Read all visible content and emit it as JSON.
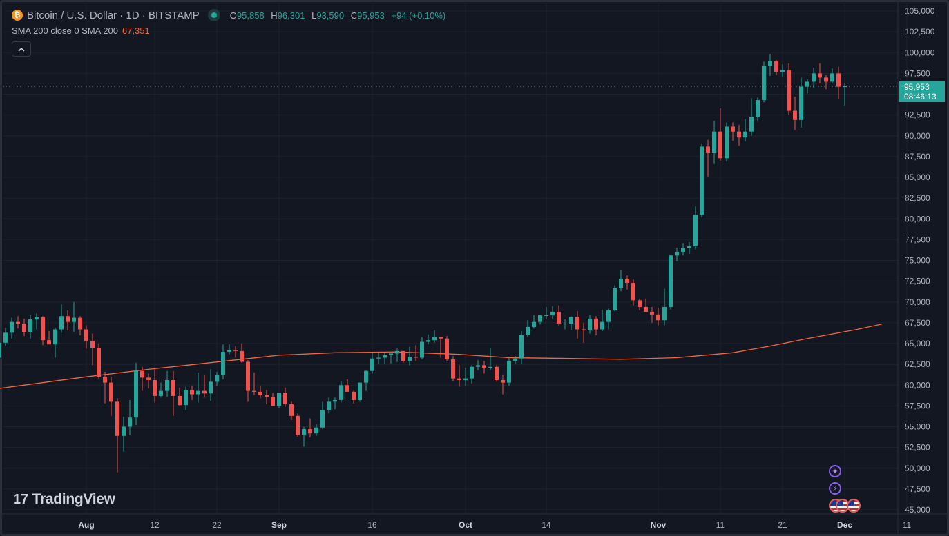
{
  "legend": {
    "logo_glyph": "₿",
    "symbol": "Bitcoin / U.S. Dollar · 1D · BITSTAMP",
    "o_label": "O",
    "o_value": "95,858",
    "h_label": "H",
    "h_value": "96,301",
    "l_label": "L",
    "l_value": "93,590",
    "c_label": "C",
    "c_value": "95,953",
    "change": "+94 (+0.10%)",
    "indicator": "SMA 200 close 0 SMA 200",
    "indicator_value": "67,351",
    "collapse_icon": "chevron-up-icon"
  },
  "price_tag": {
    "price": "95,953",
    "countdown": "08:46:13"
  },
  "branding": {
    "logo_mark": "17",
    "name": "TradingView"
  },
  "events": {
    "icon1": "✦",
    "icon2": "⚡",
    "flags": "us-flag-icon"
  },
  "colors": {
    "up": "#26a69a",
    "down": "#ef5350",
    "sma": "#f7673b",
    "background": "#131722",
    "grid": "#1e222d",
    "text": "#b2b5be"
  },
  "chart_data": {
    "type": "candlestick",
    "title": "Bitcoin / U.S. Dollar · 1D · BITSTAMP",
    "xlabel": "",
    "ylabel": "",
    "ylim": [
      45000,
      105000
    ],
    "y_ticks": [
      "45,000",
      "47,500",
      "50,000",
      "52,500",
      "55,000",
      "57,500",
      "60,000",
      "62,500",
      "65,000",
      "67,500",
      "70,000",
      "72,500",
      "75,000",
      "77,500",
      "80,000",
      "82,500",
      "85,000",
      "87,500",
      "90,000",
      "92,500",
      "95,000",
      "97,500",
      "100,000",
      "102,500",
      "105,000"
    ],
    "x_ticks": [
      {
        "label": "Aug",
        "day": 0,
        "bold": true
      },
      {
        "label": "12",
        "day": 11,
        "bold": false
      },
      {
        "label": "22",
        "day": 21,
        "bold": false
      },
      {
        "label": "Sep",
        "day": 31,
        "bold": true
      },
      {
        "label": "16",
        "day": 46,
        "bold": false
      },
      {
        "label": "Oct",
        "day": 61,
        "bold": true
      },
      {
        "label": "14",
        "day": 74,
        "bold": false
      },
      {
        "label": "Nov",
        "day": 92,
        "bold": true
      },
      {
        "label": "11",
        "day": 102,
        "bold": false
      },
      {
        "label": "21",
        "day": 112,
        "bold": false
      },
      {
        "label": "Dec",
        "day": 122,
        "bold": true
      },
      {
        "label": "11",
        "day": 132,
        "bold": false
      }
    ],
    "first_day_offset": -14,
    "last_price": 95953,
    "ohlc": [
      [
        63300,
        65400,
        62900,
        65100
      ],
      [
        65100,
        66900,
        64700,
        66300
      ],
      [
        66300,
        68100,
        65600,
        67600
      ],
      [
        67600,
        68300,
        66800,
        67400
      ],
      [
        67400,
        68000,
        65900,
        66400
      ],
      [
        66400,
        68500,
        65600,
        67900
      ],
      [
        67900,
        68600,
        66700,
        68200
      ],
      [
        68200,
        68300,
        64800,
        65400
      ],
      [
        65400,
        66500,
        64900,
        64900
      ],
      [
        64900,
        66900,
        63300,
        66700
      ],
      [
        66700,
        69700,
        66300,
        68300
      ],
      [
        68300,
        69000,
        66600,
        67600
      ],
      [
        67600,
        70000,
        66400,
        68100
      ],
      [
        68100,
        68300,
        66000,
        66700
      ],
      [
        66700,
        67200,
        64400,
        65300
      ],
      [
        65300,
        66200,
        62400,
        64500
      ],
      [
        64500,
        65000,
        60800,
        61000
      ],
      [
        61000,
        61600,
        57800,
        60300
      ],
      [
        60300,
        61000,
        56300,
        58000
      ],
      [
        58000,
        58400,
        49500,
        53900
      ],
      [
        53900,
        56200,
        52000,
        55000
      ],
      [
        55000,
        58200,
        54000,
        56100
      ],
      [
        56100,
        62700,
        55200,
        61700
      ],
      [
        61700,
        62200,
        59300,
        60900
      ],
      [
        60900,
        61400,
        59600,
        60600
      ],
      [
        60600,
        62000,
        57900,
        58700
      ],
      [
        58700,
        60300,
        58500,
        59300
      ],
      [
        59300,
        61700,
        58600,
        60600
      ],
      [
        60600,
        61700,
        56300,
        58700
      ],
      [
        58700,
        59700,
        57500,
        57600
      ],
      [
        57600,
        59800,
        57000,
        59400
      ],
      [
        59400,
        59900,
        58200,
        58900
      ],
      [
        58900,
        61500,
        57900,
        59300
      ],
      [
        59300,
        61200,
        58500,
        59000
      ],
      [
        59000,
        61900,
        58100,
        60400
      ],
      [
        60400,
        61600,
        59900,
        61200
      ],
      [
        61200,
        64900,
        60700,
        64000
      ],
      [
        64000,
        64900,
        63700,
        64200
      ],
      [
        64200,
        64700,
        63300,
        64100
      ],
      [
        64100,
        65000,
        62700,
        62800
      ],
      [
        62800,
        63000,
        58000,
        59300
      ],
      [
        59300,
        61500,
        58800,
        59200
      ],
      [
        59200,
        59900,
        58400,
        58800
      ],
      [
        58800,
        59400,
        57700,
        58600
      ],
      [
        58600,
        59100,
        57500,
        57500
      ],
      [
        57500,
        58900,
        57200,
        59100
      ],
      [
        59100,
        59700,
        57400,
        57700
      ],
      [
        57700,
        58000,
        55800,
        56300
      ],
      [
        56300,
        56600,
        53800,
        54000
      ],
      [
        54000,
        55000,
        52600,
        54700
      ],
      [
        54700,
        56000,
        53700,
        54200
      ],
      [
        54200,
        55300,
        53900,
        54900
      ],
      [
        54900,
        58000,
        54700,
        57000
      ],
      [
        57000,
        58500,
        56600,
        58000
      ],
      [
        58000,
        58500,
        57100,
        58200
      ],
      [
        58200,
        60500,
        57900,
        60000
      ],
      [
        60000,
        60700,
        59300,
        59200
      ],
      [
        59200,
        59300,
        57800,
        58200
      ],
      [
        58200,
        60300,
        58000,
        60300
      ],
      [
        60300,
        61800,
        59300,
        61700
      ],
      [
        61700,
        63900,
        61400,
        63200
      ],
      [
        63200,
        63900,
        62500,
        63300
      ],
      [
        63300,
        63900,
        62500,
        63600
      ],
      [
        63600,
        63800,
        62600,
        63800
      ],
      [
        63800,
        64400,
        62800,
        64100
      ],
      [
        64100,
        64100,
        62700,
        62900
      ],
      [
        62900,
        64600,
        62400,
        63400
      ],
      [
        63400,
        64800,
        62900,
        63300
      ],
      [
        63300,
        65800,
        63100,
        65200
      ],
      [
        65200,
        66100,
        64900,
        65400
      ],
      [
        65400,
        66600,
        65100,
        65800
      ],
      [
        65800,
        65800,
        63300,
        65600
      ],
      [
        65600,
        65900,
        62900,
        63100
      ],
      [
        63100,
        63500,
        60500,
        60800
      ],
      [
        60800,
        62400,
        59800,
        60600
      ],
      [
        60600,
        62100,
        59900,
        60800
      ],
      [
        60800,
        62400,
        60200,
        62200
      ],
      [
        62200,
        63000,
        61800,
        62400
      ],
      [
        62400,
        62900,
        61400,
        62100
      ],
      [
        62100,
        64500,
        61800,
        62200
      ],
      [
        62200,
        62400,
        60400,
        60600
      ],
      [
        60600,
        61200,
        58900,
        60300
      ],
      [
        60300,
        63400,
        59900,
        62900
      ],
      [
        62900,
        63500,
        62500,
        63200
      ],
      [
        63200,
        66500,
        62500,
        66000
      ],
      [
        66000,
        67800,
        65800,
        67000
      ],
      [
        67000,
        68400,
        66800,
        67600
      ],
      [
        67600,
        68500,
        67300,
        68400
      ],
      [
        68400,
        69400,
        68000,
        68400
      ],
      [
        68400,
        69500,
        67900,
        68800
      ],
      [
        68800,
        69600,
        67200,
        67400
      ],
      [
        67400,
        67900,
        66700,
        67400
      ],
      [
        67400,
        68300,
        66600,
        68200
      ],
      [
        68200,
        68900,
        65600,
        66700
      ],
      [
        66700,
        67500,
        65100,
        66600
      ],
      [
        66600,
        68500,
        66200,
        68000
      ],
      [
        68000,
        68300,
        66000,
        66700
      ],
      [
        66700,
        69100,
        66500,
        67600
      ],
      [
        67600,
        69200,
        66700,
        69000
      ],
      [
        69000,
        72000,
        68900,
        71700
      ],
      [
        71700,
        73800,
        71300,
        72800
      ],
      [
        72800,
        73200,
        71500,
        72300
      ],
      [
        72300,
        72700,
        69600,
        70200
      ],
      [
        70200,
        70400,
        69000,
        69400
      ],
      [
        69400,
        70400,
        68900,
        68800
      ],
      [
        68800,
        69400,
        67500,
        68500
      ],
      [
        68500,
        69300,
        67200,
        67800
      ],
      [
        67800,
        71600,
        67200,
        69400
      ],
      [
        69400,
        75600,
        69100,
        75600
      ],
      [
        75600,
        76500,
        74900,
        76000
      ],
      [
        76000,
        77100,
        75600,
        76500
      ],
      [
        76500,
        77200,
        75800,
        76700
      ],
      [
        76700,
        81500,
        76300,
        80500
      ],
      [
        80500,
        89000,
        80200,
        88700
      ],
      [
        88700,
        89500,
        85100,
        87900
      ],
      [
        87900,
        91800,
        86600,
        90500
      ],
      [
        90500,
        93300,
        87000,
        87300
      ],
      [
        87300,
        91600,
        86900,
        91100
      ],
      [
        91100,
        91600,
        89400,
        90500
      ],
      [
        90500,
        91300,
        88800,
        89800
      ],
      [
        89800,
        92000,
        89300,
        90500
      ],
      [
        90500,
        94500,
        90000,
        92300
      ],
      [
        92300,
        94600,
        91700,
        94300
      ],
      [
        94300,
        98900,
        94000,
        98400
      ],
      [
        98400,
        99800,
        97200,
        99000
      ],
      [
        99000,
        99100,
        97300,
        97700
      ],
      [
        97700,
        98600,
        97100,
        97900
      ],
      [
        97900,
        98700,
        92500,
        93000
      ],
      [
        93000,
        94700,
        90700,
        91900
      ],
      [
        91900,
        97000,
        91000,
        95900
      ],
      [
        95900,
        96800,
        95100,
        96500
      ],
      [
        96500,
        98200,
        95800,
        97500
      ],
      [
        97500,
        98700,
        96300,
        97000
      ],
      [
        97000,
        97300,
        95600,
        96500
      ],
      [
        96500,
        98100,
        96300,
        97500
      ],
      [
        97500,
        98300,
        94400,
        95900
      ],
      [
        95858,
        96301,
        93590,
        95953
      ]
    ],
    "sma_200": [
      [
        -14,
        59600
      ],
      [
        0,
        61000
      ],
      [
        10,
        61900
      ],
      [
        20,
        62700
      ],
      [
        31,
        63600
      ],
      [
        40,
        63900
      ],
      [
        50,
        64000
      ],
      [
        60,
        63700
      ],
      [
        68,
        63300
      ],
      [
        78,
        63200
      ],
      [
        86,
        63100
      ],
      [
        95,
        63300
      ],
      [
        104,
        63900
      ],
      [
        110,
        64700
      ],
      [
        116,
        65600
      ],
      [
        124,
        66700
      ],
      [
        128,
        67351
      ]
    ]
  }
}
